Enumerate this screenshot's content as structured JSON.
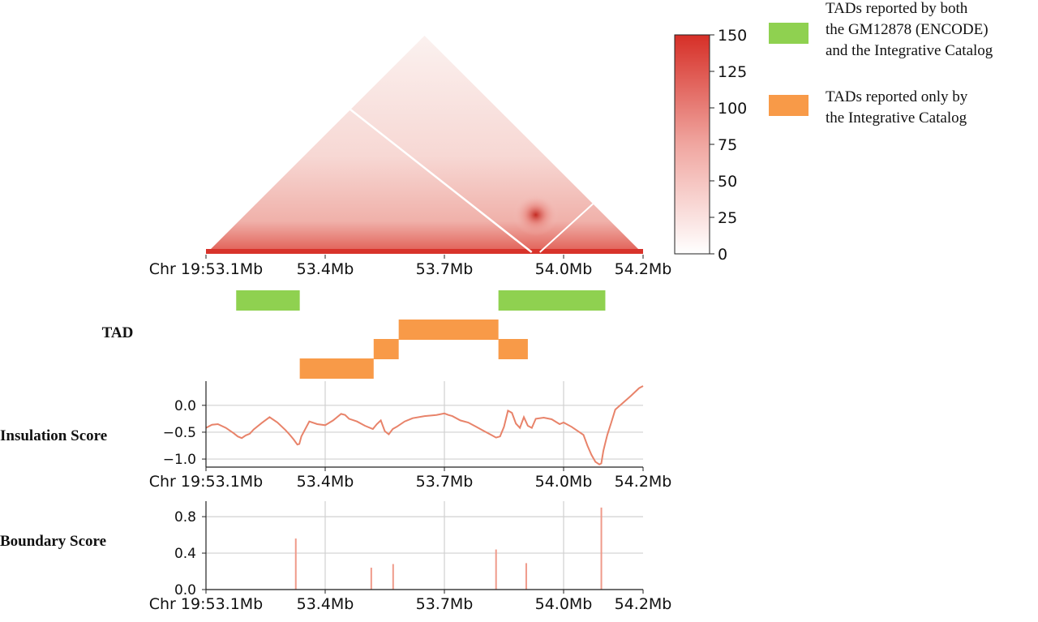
{
  "chart_data": [
    {
      "type": "heatmap",
      "description_shape": "triangular Hi-C contact map",
      "x_range_mb": [
        53.1,
        54.2
      ],
      "x_ticks": [
        "Chr 19:53.1Mb",
        "53.4Mb",
        "53.7Mb",
        "54.0Mb",
        "54.2Mb"
      ],
      "x_tick_values": [
        53.1,
        53.4,
        53.7,
        54.0,
        54.2
      ],
      "colorbar": {
        "min": 0,
        "max": 150,
        "ticks": [
          "0",
          "25",
          "50",
          "75",
          "100",
          "125",
          "150"
        ],
        "tick_values": [
          0,
          25,
          50,
          75,
          100,
          125,
          150
        ],
        "color_low": "#ffffff",
        "color_high": "#d62f27"
      },
      "hotspot_mb": 53.93
    },
    {
      "type": "bar",
      "label": "TAD",
      "x_range_mb": [
        53.1,
        54.2
      ],
      "legend": [
        {
          "color": "#8fd150",
          "text": [
            "TADs reported by both",
            "the GM12878 (ENCODE)",
            "and the Integrative Catalog"
          ]
        },
        {
          "color": "#f89a48",
          "text": [
            "TADs reported only by",
            "the Integrative Catalog"
          ]
        }
      ],
      "segments": [
        {
          "start": 53.176,
          "end": 53.336,
          "row": 0,
          "category": "both"
        },
        {
          "start": 53.836,
          "end": 54.105,
          "row": 0,
          "category": "both"
        },
        {
          "start": 53.585,
          "end": 53.836,
          "row": 1,
          "category": "integrative_only"
        },
        {
          "start": 53.522,
          "end": 53.585,
          "row": 2,
          "category": "integrative_only"
        },
        {
          "start": 53.836,
          "end": 53.91,
          "row": 2,
          "category": "integrative_only"
        },
        {
          "start": 53.336,
          "end": 53.522,
          "row": 3,
          "category": "integrative_only"
        }
      ]
    },
    {
      "type": "line",
      "ylabel": "Insulation Score",
      "color": "#e8836a",
      "x_range_mb": [
        53.1,
        54.2
      ],
      "ylim": [
        -1.15,
        0.45
      ],
      "yticks": [
        "0.0",
        "−0.5",
        "−1.0"
      ],
      "ytick_values": [
        0.0,
        -0.5,
        -1.0
      ],
      "x_ticks": [
        "Chr 19:53.1Mb",
        "53.4Mb",
        "53.7Mb",
        "54.0Mb",
        "54.2Mb"
      ],
      "x_tick_values": [
        53.1,
        53.4,
        53.7,
        54.0,
        54.2
      ],
      "grid": true,
      "x": [
        53.1,
        53.115,
        53.13,
        53.15,
        53.17,
        53.18,
        53.19,
        53.2,
        53.21,
        53.22,
        53.24,
        53.26,
        53.28,
        53.3,
        53.31,
        53.32,
        53.33,
        53.335,
        53.34,
        53.36,
        53.38,
        53.4,
        53.42,
        53.44,
        53.45,
        53.46,
        53.48,
        53.5,
        53.52,
        53.53,
        53.54,
        53.55,
        53.56,
        53.57,
        53.58,
        53.6,
        53.62,
        53.65,
        53.68,
        53.7,
        53.71,
        53.72,
        53.74,
        53.76,
        53.78,
        53.8,
        53.82,
        53.83,
        53.84,
        53.85,
        53.86,
        53.87,
        53.88,
        53.89,
        53.9,
        53.91,
        53.92,
        53.93,
        53.95,
        53.97,
        53.99,
        54.0,
        54.02,
        54.04,
        54.05,
        54.06,
        54.07,
        54.08,
        54.09,
        54.095,
        54.1,
        54.105,
        54.11,
        54.12,
        54.13,
        54.15,
        54.17,
        54.19,
        54.2
      ],
      "y": [
        -0.42,
        -0.36,
        -0.35,
        -0.42,
        -0.52,
        -0.58,
        -0.61,
        -0.56,
        -0.53,
        -0.45,
        -0.33,
        -0.22,
        -0.32,
        -0.46,
        -0.54,
        -0.63,
        -0.73,
        -0.72,
        -0.58,
        -0.3,
        -0.35,
        -0.37,
        -0.28,
        -0.16,
        -0.18,
        -0.25,
        -0.3,
        -0.38,
        -0.44,
        -0.35,
        -0.28,
        -0.48,
        -0.54,
        -0.44,
        -0.4,
        -0.3,
        -0.24,
        -0.2,
        -0.18,
        -0.15,
        -0.18,
        -0.2,
        -0.28,
        -0.32,
        -0.4,
        -0.48,
        -0.56,
        -0.6,
        -0.58,
        -0.4,
        -0.1,
        -0.14,
        -0.34,
        -0.42,
        -0.22,
        -0.38,
        -0.42,
        -0.25,
        -0.23,
        -0.26,
        -0.35,
        -0.32,
        -0.4,
        -0.5,
        -0.55,
        -0.75,
        -0.92,
        -1.05,
        -1.1,
        -1.08,
        -0.85,
        -0.7,
        -0.55,
        -0.32,
        -0.08,
        0.05,
        0.18,
        0.32,
        0.36
      ]
    },
    {
      "type": "bar",
      "ylabel": "Boundary Score",
      "color": "#ef9a8a",
      "x_range_mb": [
        53.1,
        54.2
      ],
      "ylim": [
        0.0,
        0.97
      ],
      "yticks": [
        "0.8",
        "0.4",
        "0.0"
      ],
      "ytick_values": [
        0.8,
        0.4,
        0.0
      ],
      "x_ticks": [
        "Chr 19:53.1Mb",
        "53.4Mb",
        "53.7Mb",
        "54.0Mb",
        "54.2Mb"
      ],
      "x_tick_values": [
        53.1,
        53.4,
        53.7,
        54.0,
        54.2
      ],
      "grid": true,
      "x": [
        53.326,
        53.516,
        53.571,
        53.83,
        53.906,
        54.095
      ],
      "values": [
        0.56,
        0.24,
        0.28,
        0.44,
        0.29,
        0.9
      ]
    }
  ]
}
